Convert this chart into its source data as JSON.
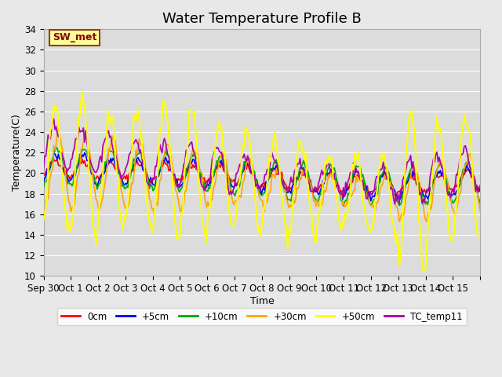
{
  "title": "Water Temperature Profile B",
  "xlabel": "Time",
  "ylabel": "Temperature(C)",
  "ylim": [
    10,
    34
  ],
  "yticks": [
    10,
    12,
    14,
    16,
    18,
    20,
    22,
    24,
    26,
    28,
    30,
    32,
    34
  ],
  "x_tick_positions": [
    0,
    1,
    2,
    3,
    4,
    5,
    6,
    7,
    8,
    9,
    10,
    11,
    12,
    13,
    14,
    15,
    16
  ],
  "x_labels": [
    "Sep 30",
    "Oct 1",
    "Oct 2",
    "Oct 3",
    "Oct 4",
    "Oct 5",
    "Oct 6",
    "Oct 7",
    "Oct 8",
    "Oct 9",
    "Oct 10",
    "Oct 11",
    "Oct 12",
    "Oct 13",
    "Oct 14",
    "Oct 15",
    ""
  ],
  "annotation_text": "SW_met",
  "annotation_color": "#8B0000",
  "annotation_bg": "#FFFF99",
  "annotation_border": "#8B4513",
  "series_names": [
    "0cm",
    "+5cm",
    "+10cm",
    "+30cm",
    "+50cm",
    "TC_temp11"
  ],
  "series_colors": [
    "#FF0000",
    "#0000FF",
    "#00AA00",
    "#FFA500",
    "#FFFF00",
    "#AA00AA"
  ],
  "series_lw": [
    1.2,
    1.2,
    1.2,
    1.2,
    1.5,
    1.2
  ],
  "bg_color": "#E8E8E8",
  "plot_bg": "#DCDCDC",
  "grid_color": "#FFFFFF",
  "title_fontsize": 13,
  "axis_fontsize": 9,
  "tick_fontsize": 8.5,
  "n_days": 16
}
